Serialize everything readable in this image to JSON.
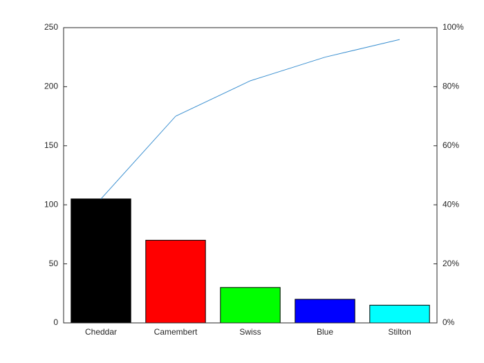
{
  "chart_data": {
    "type": "pareto",
    "categories": [
      "Cheddar",
      "Camembert",
      "Swiss",
      "Blue",
      "Stilton"
    ],
    "values": [
      105,
      70,
      30,
      20,
      15
    ],
    "colors": [
      "#000000",
      "#ff0000",
      "#00ff00",
      "#0000ff",
      "#00ffff"
    ],
    "ylim": [
      0,
      250
    ],
    "yticks": [
      0,
      50,
      100,
      150,
      200,
      250
    ],
    "series": [
      {
        "axis": "y2",
        "color": "#3a8fd0",
        "values": [
          42,
          70,
          82,
          90,
          96
        ]
      }
    ],
    "y2lim": [
      0,
      100
    ],
    "y2ticks": [
      {
        "value": 0,
        "label": "0%"
      },
      {
        "value": 20,
        "label": "20%"
      },
      {
        "value": 40,
        "label": "40%"
      },
      {
        "value": 60,
        "label": "60%"
      },
      {
        "value": 80,
        "label": "80%"
      },
      {
        "value": 100,
        "label": "100%"
      }
    ]
  }
}
